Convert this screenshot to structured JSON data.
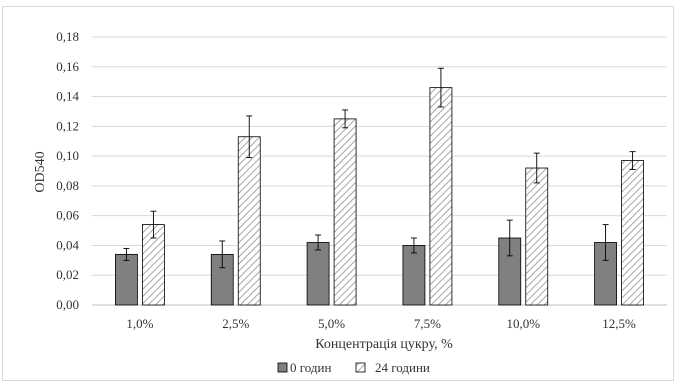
{
  "chart_data": {
    "type": "bar",
    "title": "",
    "xlabel": "Концентрація цукру, %",
    "ylabel": "OD540",
    "categories": [
      "1,0%",
      "2,5%",
      "5,0%",
      "7,5%",
      "10,0%",
      "12,5%"
    ],
    "ylim": [
      0,
      0.18
    ],
    "yticks": [
      0,
      0.02,
      0.04,
      0.06,
      0.08,
      0.1,
      0.12,
      0.14,
      0.16,
      0.18
    ],
    "ytick_labels": [
      "0,00",
      "0,02",
      "0,04",
      "0,06",
      "0,08",
      "0,10",
      "0,12",
      "0,14",
      "0,16",
      "0,18"
    ],
    "grid": true,
    "legend_position": "bottom",
    "series": [
      {
        "name": "0 годин",
        "values": [
          0.034,
          0.034,
          0.042,
          0.04,
          0.045,
          0.042
        ],
        "errors": [
          0.004,
          0.009,
          0.005,
          0.005,
          0.012,
          0.012
        ],
        "fill": "#808080",
        "pattern": "solid"
      },
      {
        "name": "24 години",
        "values": [
          0.054,
          0.113,
          0.125,
          0.146,
          0.092,
          0.097
        ],
        "errors": [
          0.009,
          0.014,
          0.006,
          0.013,
          0.01,
          0.006
        ],
        "fill": "#ffffff",
        "pattern": "diagonal-hatch"
      }
    ]
  }
}
